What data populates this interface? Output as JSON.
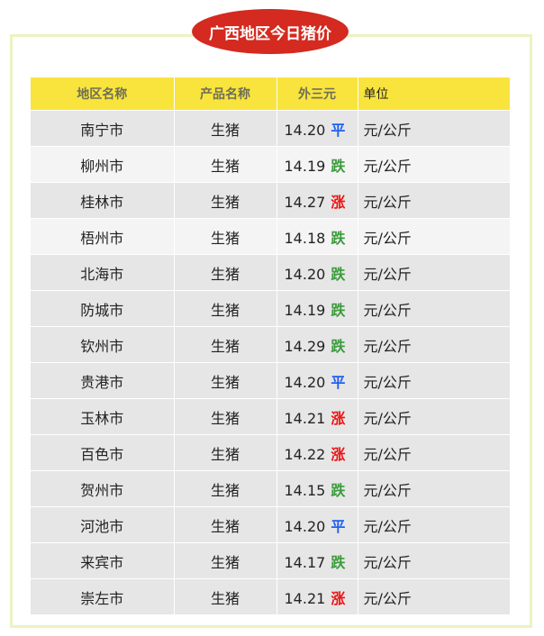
{
  "title": "广西地区今日猪价",
  "headers": [
    "地区名称",
    "产品名称",
    "外三元",
    "单位"
  ],
  "trend_colors": {
    "平": "#1e5ef0",
    "跌": "#3c9c3c",
    "涨": "#f01010"
  },
  "rows": [
    {
      "region": "南宁市",
      "product": "生猪",
      "price": "14.20",
      "trend": "平",
      "unit": "元/公斤"
    },
    {
      "region": "柳州市",
      "product": "生猪",
      "price": "14.19",
      "trend": "跌",
      "unit": "元/公斤"
    },
    {
      "region": "桂林市",
      "product": "生猪",
      "price": "14.27",
      "trend": "涨",
      "unit": "元/公斤"
    },
    {
      "region": "梧州市",
      "product": "生猪",
      "price": "14.18",
      "trend": "跌",
      "unit": "元/公斤"
    },
    {
      "region": "北海市",
      "product": "生猪",
      "price": "14.20",
      "trend": "跌",
      "unit": "元/公斤"
    },
    {
      "region": "防城市",
      "product": "生猪",
      "price": "14.19",
      "trend": "跌",
      "unit": "元/公斤"
    },
    {
      "region": "钦州市",
      "product": "生猪",
      "price": "14.29",
      "trend": "跌",
      "unit": "元/公斤"
    },
    {
      "region": "贵港市",
      "product": "生猪",
      "price": "14.20",
      "trend": "平",
      "unit": "元/公斤"
    },
    {
      "region": "玉林市",
      "product": "生猪",
      "price": "14.21",
      "trend": "涨",
      "unit": "元/公斤"
    },
    {
      "region": "百色市",
      "product": "生猪",
      "price": "14.22",
      "trend": "涨",
      "unit": "元/公斤"
    },
    {
      "region": "贺州市",
      "product": "生猪",
      "price": "14.15",
      "trend": "跌",
      "unit": "元/公斤"
    },
    {
      "region": "河池市",
      "product": "生猪",
      "price": "14.20",
      "trend": "平",
      "unit": "元/公斤"
    },
    {
      "region": "来宾市",
      "product": "生猪",
      "price": "14.17",
      "trend": "跌",
      "unit": "元/公斤"
    },
    {
      "region": "崇左市",
      "product": "生猪",
      "price": "14.21",
      "trend": "涨",
      "unit": "元/公斤"
    }
  ]
}
